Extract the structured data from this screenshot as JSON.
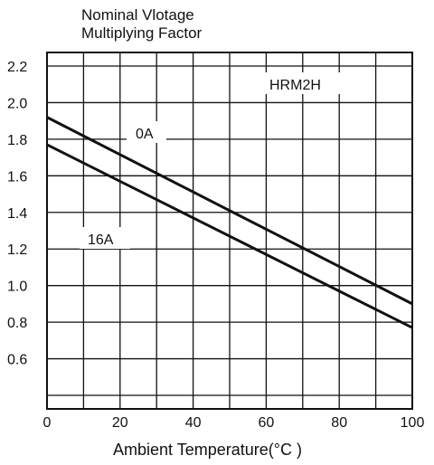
{
  "chart_data": {
    "type": "line",
    "ylabel": [
      "Nominal Vlotage",
      "Multiplying Factor"
    ],
    "xlabel": "Ambient Temperature(°C  )",
    "xlim": [
      0,
      100
    ],
    "ylim": [
      0.4,
      2.2
    ],
    "x_ticks": [
      0,
      20,
      40,
      60,
      80,
      100
    ],
    "x_tick_labels": [
      "0",
      "20",
      "40",
      "60",
      "80",
      "100"
    ],
    "y_ticks": [
      2.2,
      2.0,
      1.8,
      1.6,
      1.4,
      1.2,
      1.0,
      0.8,
      0.6
    ],
    "y_tick_labels": [
      "2.2",
      "2.0",
      "1.8",
      "1.6",
      "1.4",
      "1.2",
      "1.0",
      "0.8",
      "0.6"
    ],
    "grid": true,
    "annotation": "HRM2H",
    "series": [
      {
        "name": "0A",
        "x": [
          0,
          100
        ],
        "y": [
          1.92,
          0.9
        ]
      },
      {
        "name": "16A",
        "x": [
          0,
          100
        ],
        "y": [
          1.77,
          0.77
        ]
      }
    ]
  }
}
